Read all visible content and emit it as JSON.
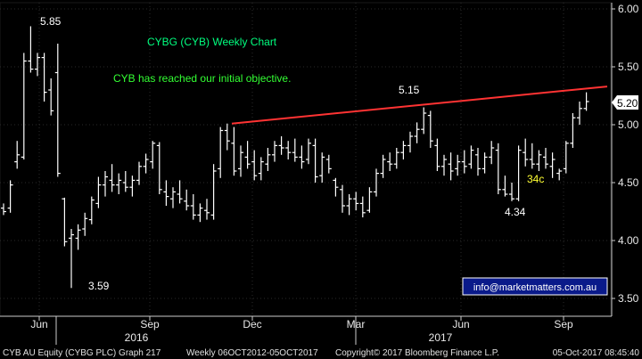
{
  "chart_data": {
    "type": "ohlc",
    "title": "CYBG (CYB) Weekly Chart",
    "subtitle": "CYB has reached our initial objective.",
    "y_ticks": [
      "6.00",
      "5.50",
      "5.00",
      "4.50",
      "4.00",
      "3.50"
    ],
    "ylim": [
      3.35,
      6.05
    ],
    "x_ticks": [
      "Jun",
      "Sep",
      "Dec",
      "Mar",
      "Jun",
      "Sep"
    ],
    "year_labels": [
      "2016",
      "2017"
    ],
    "last_price": "5.20",
    "annotations": {
      "high_2016": "5.85",
      "low_2016": "3.59",
      "high_2017": "5.15",
      "low_2017": "4.34",
      "move": "34c"
    },
    "trendline": {
      "from": 5.01,
      "to": 5.33
    },
    "footer": {
      "security": "CYB AU Equity (CYBG PLC) Graph 217",
      "range": "Weekly 06OCT2012-05OCT2017",
      "copyright": "Copyright© 2017 Bloomberg Finance L.P.",
      "timestamp": "05-Oct-2017 08:45:40"
    },
    "website": "info@marketmatters.com.au",
    "colors": {
      "background": "#000000",
      "bars": "#ffffff",
      "trendline": "#ff3333",
      "title": "#00ff7f",
      "subtitle": "#33ff33",
      "annotation": "#ffffff",
      "move_label": "#ffff33",
      "website_box": "#0a1a8a",
      "website_text": "#ffffff",
      "grid": "#2a2a2a"
    },
    "series": [
      {
        "bars": [
          {
            "o": 4.28,
            "h": 4.32,
            "l": 4.22,
            "c": 4.25
          },
          {
            "o": 4.28,
            "h": 4.52,
            "l": 4.24,
            "c": 4.48
          },
          {
            "o": 4.68,
            "h": 4.86,
            "l": 4.62,
            "c": 4.74
          },
          {
            "o": 4.72,
            "h": 5.62,
            "l": 4.7,
            "c": 5.55
          },
          {
            "o": 5.55,
            "h": 5.85,
            "l": 5.45,
            "c": 5.48
          },
          {
            "o": 5.48,
            "h": 5.62,
            "l": 5.42,
            "c": 5.58
          },
          {
            "o": 5.58,
            "h": 5.62,
            "l": 5.2,
            "c": 5.28
          },
          {
            "o": 5.3,
            "h": 5.4,
            "l": 5.08,
            "c": 5.12
          },
          {
            "o": 5.45,
            "h": 5.7,
            "l": 4.55,
            "c": 4.58
          },
          {
            "o": 4.36,
            "h": 4.37,
            "l": 3.95,
            "c": 3.99
          },
          {
            "o": 4.02,
            "h": 4.1,
            "l": 3.59,
            "c": 4.05
          },
          {
            "o": 4.02,
            "h": 4.14,
            "l": 3.92,
            "c": 4.09
          },
          {
            "o": 4.1,
            "h": 4.24,
            "l": 4.04,
            "c": 4.19
          },
          {
            "o": 4.18,
            "h": 4.38,
            "l": 4.14,
            "c": 4.35
          },
          {
            "o": 4.32,
            "h": 4.55,
            "l": 4.28,
            "c": 4.48
          },
          {
            "o": 4.48,
            "h": 4.6,
            "l": 4.38,
            "c": 4.55
          },
          {
            "o": 4.52,
            "h": 4.66,
            "l": 4.42,
            "c": 4.48
          },
          {
            "o": 4.48,
            "h": 4.58,
            "l": 4.4,
            "c": 4.52
          },
          {
            "o": 4.5,
            "h": 4.6,
            "l": 4.42,
            "c": 4.46
          },
          {
            "o": 4.46,
            "h": 4.56,
            "l": 4.38,
            "c": 4.52
          },
          {
            "o": 4.52,
            "h": 4.68,
            "l": 4.48,
            "c": 4.64
          },
          {
            "o": 4.64,
            "h": 4.75,
            "l": 4.58,
            "c": 4.7
          },
          {
            "o": 4.68,
            "h": 4.86,
            "l": 4.62,
            "c": 4.84
          },
          {
            "o": 4.82,
            "h": 4.85,
            "l": 4.4,
            "c": 4.44
          },
          {
            "o": 4.42,
            "h": 4.52,
            "l": 4.3,
            "c": 4.38
          },
          {
            "o": 4.36,
            "h": 4.46,
            "l": 4.28,
            "c": 4.42
          },
          {
            "o": 4.4,
            "h": 4.52,
            "l": 4.32,
            "c": 4.36
          },
          {
            "o": 4.34,
            "h": 4.44,
            "l": 4.26,
            "c": 4.3
          },
          {
            "o": 4.3,
            "h": 4.4,
            "l": 4.18,
            "c": 4.22
          },
          {
            "o": 4.22,
            "h": 4.32,
            "l": 4.16,
            "c": 4.28
          },
          {
            "o": 4.26,
            "h": 4.36,
            "l": 4.18,
            "c": 4.24
          },
          {
            "o": 4.22,
            "h": 4.66,
            "l": 4.18,
            "c": 4.6
          },
          {
            "o": 4.62,
            "h": 4.98,
            "l": 4.54,
            "c": 4.95
          },
          {
            "o": 4.95,
            "h": 5.01,
            "l": 4.78,
            "c": 4.86
          },
          {
            "o": 4.84,
            "h": 4.98,
            "l": 4.56,
            "c": 4.6
          },
          {
            "o": 4.62,
            "h": 4.82,
            "l": 4.55,
            "c": 4.76
          },
          {
            "o": 4.72,
            "h": 4.86,
            "l": 4.62,
            "c": 4.66
          },
          {
            "o": 4.68,
            "h": 4.78,
            "l": 4.52,
            "c": 4.56
          },
          {
            "o": 4.58,
            "h": 4.72,
            "l": 4.52,
            "c": 4.68
          },
          {
            "o": 4.66,
            "h": 4.8,
            "l": 4.6,
            "c": 4.74
          },
          {
            "o": 4.74,
            "h": 4.86,
            "l": 4.68,
            "c": 4.82
          },
          {
            "o": 4.82,
            "h": 4.9,
            "l": 4.74,
            "c": 4.8
          },
          {
            "o": 4.8,
            "h": 4.86,
            "l": 4.7,
            "c": 4.76
          },
          {
            "o": 4.76,
            "h": 4.88,
            "l": 4.68,
            "c": 4.72
          },
          {
            "o": 4.72,
            "h": 4.82,
            "l": 4.62,
            "c": 4.68
          },
          {
            "o": 4.7,
            "h": 4.88,
            "l": 4.66,
            "c": 4.84
          },
          {
            "o": 4.82,
            "h": 4.88,
            "l": 4.5,
            "c": 4.55
          },
          {
            "o": 4.56,
            "h": 4.76,
            "l": 4.5,
            "c": 4.72
          },
          {
            "o": 4.7,
            "h": 4.74,
            "l": 4.58,
            "c": 4.62
          },
          {
            "o": 4.52,
            "h": 4.54,
            "l": 4.38,
            "c": 4.46
          },
          {
            "o": 4.44,
            "h": 4.48,
            "l": 4.24,
            "c": 4.3
          },
          {
            "o": 4.3,
            "h": 4.4,
            "l": 4.22,
            "c": 4.36
          },
          {
            "o": 4.36,
            "h": 4.42,
            "l": 4.26,
            "c": 4.32
          },
          {
            "o": 4.32,
            "h": 4.38,
            "l": 4.2,
            "c": 4.24
          },
          {
            "o": 4.26,
            "h": 4.46,
            "l": 4.24,
            "c": 4.42
          },
          {
            "o": 4.42,
            "h": 4.62,
            "l": 4.38,
            "c": 4.58
          },
          {
            "o": 4.58,
            "h": 4.74,
            "l": 4.54,
            "c": 4.7
          },
          {
            "o": 4.68,
            "h": 4.76,
            "l": 4.6,
            "c": 4.66
          },
          {
            "o": 4.66,
            "h": 4.8,
            "l": 4.62,
            "c": 4.76
          },
          {
            "o": 4.76,
            "h": 4.86,
            "l": 4.7,
            "c": 4.82
          },
          {
            "o": 4.82,
            "h": 4.94,
            "l": 4.76,
            "c": 4.9
          },
          {
            "o": 4.9,
            "h": 5.02,
            "l": 4.84,
            "c": 4.96
          },
          {
            "o": 4.96,
            "h": 5.15,
            "l": 4.92,
            "c": 5.1
          },
          {
            "o": 5.08,
            "h": 5.12,
            "l": 4.8,
            "c": 4.86
          },
          {
            "o": 4.82,
            "h": 4.88,
            "l": 4.6,
            "c": 4.64
          },
          {
            "o": 4.64,
            "h": 4.74,
            "l": 4.56,
            "c": 4.7
          },
          {
            "o": 4.66,
            "h": 4.76,
            "l": 4.52,
            "c": 4.6
          },
          {
            "o": 4.62,
            "h": 4.74,
            "l": 4.56,
            "c": 4.68
          },
          {
            "o": 4.68,
            "h": 4.78,
            "l": 4.58,
            "c": 4.64
          },
          {
            "o": 4.66,
            "h": 4.82,
            "l": 4.62,
            "c": 4.78
          },
          {
            "o": 4.74,
            "h": 4.8,
            "l": 4.56,
            "c": 4.62
          },
          {
            "o": 4.62,
            "h": 4.76,
            "l": 4.58,
            "c": 4.72
          },
          {
            "o": 4.72,
            "h": 4.86,
            "l": 4.66,
            "c": 4.8
          },
          {
            "o": 4.78,
            "h": 4.84,
            "l": 4.4,
            "c": 4.44
          },
          {
            "o": 4.44,
            "h": 4.56,
            "l": 4.38,
            "c": 4.4
          },
          {
            "o": 4.4,
            "h": 4.5,
            "l": 4.34,
            "c": 4.36
          },
          {
            "o": 4.36,
            "h": 4.82,
            "l": 4.34,
            "c": 4.78
          },
          {
            "o": 4.76,
            "h": 4.88,
            "l": 4.64,
            "c": 4.7
          },
          {
            "o": 4.7,
            "h": 4.84,
            "l": 4.62,
            "c": 4.66
          },
          {
            "o": 4.66,
            "h": 4.78,
            "l": 4.6,
            "c": 4.74
          },
          {
            "o": 4.72,
            "h": 4.8,
            "l": 4.62,
            "c": 4.66
          },
          {
            "o": 4.64,
            "h": 4.76,
            "l": 4.54,
            "c": 4.7
          },
          {
            "o": 4.58,
            "h": 4.62,
            "l": 4.52,
            "c": 4.6
          },
          {
            "o": 4.62,
            "h": 4.86,
            "l": 4.58,
            "c": 4.84
          },
          {
            "o": 4.84,
            "h": 5.1,
            "l": 4.8,
            "c": 5.06
          },
          {
            "o": 5.06,
            "h": 5.2,
            "l": 5.0,
            "c": 5.14
          },
          {
            "o": 5.14,
            "h": 5.28,
            "l": 5.12,
            "c": 5.2
          }
        ]
      }
    ]
  }
}
